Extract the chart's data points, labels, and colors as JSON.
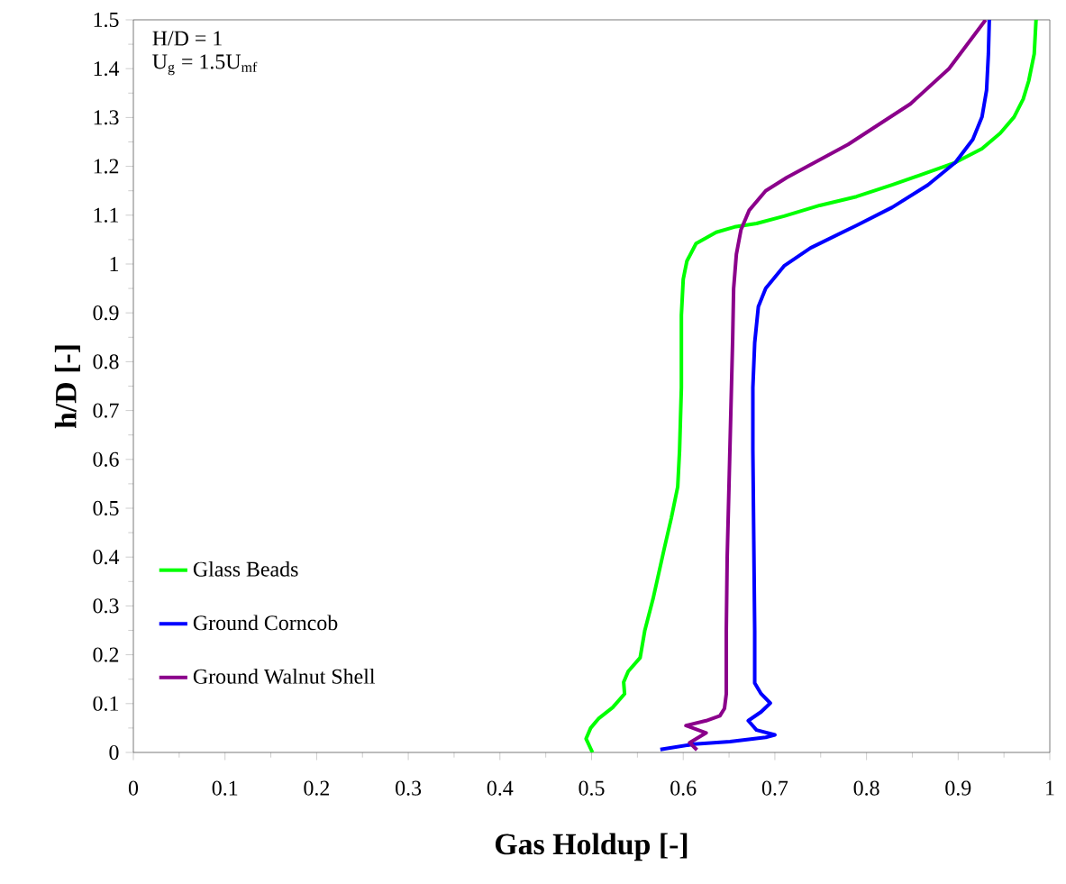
{
  "chart_data": {
    "type": "line",
    "xlabel": "Gas Holdup [-]",
    "ylabel": "h/D [-]",
    "annotations": [
      "H/D = 1",
      "U$_{g}$ = 1.5U$_{mf}$"
    ],
    "xlim": [
      0,
      1
    ],
    "ylim": [
      0,
      1.5
    ],
    "xticks": [
      0,
      0.1,
      0.2,
      0.3,
      0.4,
      0.5,
      0.6,
      0.7,
      0.8,
      0.9,
      1
    ],
    "yticks": [
      0,
      0.1,
      0.2,
      0.3,
      0.4,
      0.5,
      0.6,
      0.7,
      0.8,
      0.9,
      1,
      1.1,
      1.2,
      1.3,
      1.4,
      1.5
    ],
    "legend": "bottom left",
    "grid": false,
    "marker": "none",
    "line_style": "solid",
    "series": [
      {
        "name": "Glass Beads",
        "color": "#00ff00",
        "x": [
          0.501,
          0.494,
          0.499,
          0.508,
          0.523,
          0.536,
          0.535,
          0.54,
          0.553,
          0.558,
          0.567,
          0.579,
          0.587,
          0.594,
          0.596,
          0.598,
          0.598,
          0.6,
          0.604,
          0.614,
          0.636,
          0.656,
          0.68,
          0.71,
          0.749,
          0.789,
          0.828,
          0.857,
          0.897,
          0.926,
          0.946,
          0.961,
          0.971,
          0.977,
          0.983,
          0.985
        ],
        "values": [
          0,
          0.028,
          0.05,
          0.07,
          0.092,
          0.12,
          0.144,
          0.166,
          0.194,
          0.249,
          0.314,
          0.415,
          0.48,
          0.544,
          0.618,
          0.747,
          0.895,
          0.969,
          1.006,
          1.042,
          1.065,
          1.076,
          1.083,
          1.098,
          1.12,
          1.138,
          1.162,
          1.181,
          1.208,
          1.236,
          1.268,
          1.301,
          1.338,
          1.375,
          1.43,
          1.5
        ]
      },
      {
        "name": "Ground Corncob",
        "color": "#0000ff",
        "x": [
          0.575,
          0.612,
          0.651,
          0.69,
          0.7,
          0.68,
          0.671,
          0.685,
          0.695,
          0.685,
          0.678,
          0.678,
          0.677,
          0.676,
          0.676,
          0.678,
          0.682,
          0.69,
          0.71,
          0.739,
          0.789,
          0.828,
          0.867,
          0.897,
          0.916,
          0.926,
          0.931,
          0.933,
          0.934
        ],
        "values": [
          0.006,
          0.017,
          0.022,
          0.031,
          0.036,
          0.046,
          0.065,
          0.083,
          0.101,
          0.12,
          0.142,
          0.249,
          0.434,
          0.618,
          0.747,
          0.839,
          0.913,
          0.95,
          0.996,
          1.033,
          1.079,
          1.116,
          1.162,
          1.208,
          1.255,
          1.301,
          1.356,
          1.43,
          1.5
        ]
      },
      {
        "name": "Ground Walnut Shell",
        "color": "#8b008b",
        "x": [
          0.615,
          0.607,
          0.625,
          0.603,
          0.625,
          0.64,
          0.645,
          0.647,
          0.647,
          0.648,
          0.65,
          0.652,
          0.654,
          0.655,
          0.658,
          0.663,
          0.672,
          0.69,
          0.713,
          0.78,
          0.848,
          0.89,
          0.93
        ],
        "values": [
          0.005,
          0.02,
          0.04,
          0.055,
          0.065,
          0.075,
          0.09,
          0.12,
          0.25,
          0.4,
          0.55,
          0.7,
          0.85,
          0.95,
          1.02,
          1.07,
          1.11,
          1.15,
          1.177,
          1.245,
          1.328,
          1.4,
          1.5
        ]
      }
    ]
  }
}
